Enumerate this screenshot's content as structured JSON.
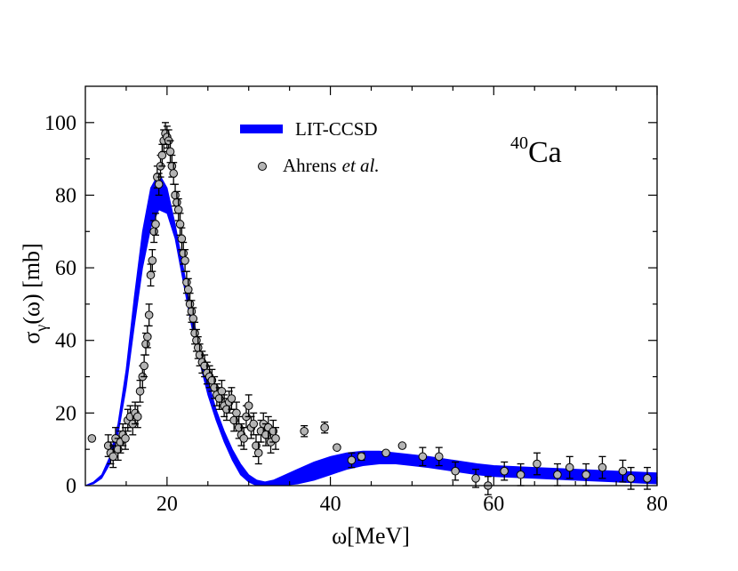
{
  "chart_data": {
    "type": "line",
    "xlabel": "ω[MeV]",
    "ylabel": {
      "main": "σ",
      "sub": "γ",
      "rest": "(ω) [mb]"
    },
    "xlim": [
      10,
      80
    ],
    "ylim": [
      0,
      110
    ],
    "xticks": [
      20,
      40,
      60,
      80
    ],
    "yticks": [
      0,
      20,
      40,
      60,
      80,
      100
    ],
    "xtick_labels": [
      "20",
      "40",
      "60",
      "80"
    ],
    "ytick_labels": [
      "0",
      "20",
      "40",
      "60",
      "80",
      "100"
    ],
    "annotation": {
      "sup": "40",
      "base": "Ca"
    },
    "colors": {
      "band": "#0000ff",
      "points": "#b4b4b4"
    },
    "series": [
      {
        "name": "LIT-CCSD",
        "kind": "band",
        "x": [
          10,
          11,
          12,
          13,
          14,
          15,
          16,
          17,
          18,
          19,
          20,
          21,
          22,
          23,
          24,
          25,
          26,
          27,
          28,
          29,
          30,
          31,
          32,
          33,
          34,
          36,
          38,
          40,
          42,
          44,
          46,
          48,
          50,
          52,
          55,
          58,
          60,
          65,
          70,
          75,
          80
        ],
        "lower": [
          0,
          0.5,
          2,
          6,
          14,
          27,
          44,
          60,
          71,
          76,
          75,
          68,
          56,
          44,
          34,
          25,
          18,
          12,
          7,
          3,
          1,
          0,
          0,
          0,
          0,
          0.5,
          1.5,
          3,
          4.5,
          5.5,
          6,
          6,
          5.5,
          5,
          4,
          3,
          2.5,
          2,
          1.5,
          1,
          0.5
        ],
        "upper": [
          0,
          1,
          3,
          8,
          17,
          32,
          52,
          70,
          82,
          86,
          82,
          72,
          60,
          48,
          38,
          29,
          21,
          15,
          10,
          6,
          3,
          1.5,
          1,
          1.5,
          2.5,
          4.5,
          6.5,
          8,
          9,
          9.5,
          9.5,
          9,
          8.5,
          8,
          7,
          6,
          5.5,
          5,
          4.5,
          4,
          3.5
        ]
      },
      {
        "name": "Ahrens et al.",
        "name_main": "Ahrens",
        "name_italic": "et al.",
        "kind": "scatter",
        "points": [
          [
            10.8,
            13,
            0
          ],
          [
            12.8,
            11,
            3
          ],
          [
            13.1,
            9,
            3
          ],
          [
            13.4,
            8,
            3
          ],
          [
            13.7,
            13,
            3
          ],
          [
            14.0,
            10,
            3
          ],
          [
            14.3,
            12,
            3
          ],
          [
            14.6,
            14,
            3
          ],
          [
            14.9,
            13,
            3
          ],
          [
            15.2,
            18,
            3
          ],
          [
            15.5,
            19,
            3
          ],
          [
            15.8,
            17,
            3
          ],
          [
            16.1,
            20,
            3
          ],
          [
            16.4,
            19,
            3
          ],
          [
            16.7,
            26,
            3
          ],
          [
            17.0,
            30,
            3
          ],
          [
            17.2,
            33,
            3
          ],
          [
            17.4,
            39,
            3
          ],
          [
            17.6,
            41,
            3
          ],
          [
            17.8,
            47,
            3
          ],
          [
            18.0,
            58,
            3
          ],
          [
            18.2,
            62,
            3
          ],
          [
            18.4,
            70,
            3
          ],
          [
            18.6,
            72,
            3
          ],
          [
            18.8,
            85,
            3
          ],
          [
            19.0,
            83,
            3
          ],
          [
            19.2,
            88,
            3
          ],
          [
            19.4,
            91,
            3
          ],
          [
            19.6,
            95,
            3
          ],
          [
            19.8,
            97,
            3
          ],
          [
            20.0,
            96,
            3
          ],
          [
            20.2,
            95,
            3
          ],
          [
            20.4,
            92,
            3
          ],
          [
            20.6,
            88,
            3
          ],
          [
            20.8,
            86,
            3
          ],
          [
            21.0,
            80,
            3
          ],
          [
            21.2,
            78,
            3
          ],
          [
            21.4,
            76,
            3
          ],
          [
            21.6,
            72,
            3
          ],
          [
            21.8,
            68,
            3
          ],
          [
            22.0,
            64,
            3
          ],
          [
            22.2,
            62,
            3
          ],
          [
            22.4,
            56,
            3
          ],
          [
            22.6,
            54,
            3
          ],
          [
            22.8,
            50,
            3
          ],
          [
            23.0,
            48,
            3
          ],
          [
            23.2,
            46,
            3
          ],
          [
            23.4,
            42,
            3
          ],
          [
            23.6,
            40,
            3
          ],
          [
            23.8,
            38,
            3
          ],
          [
            24.0,
            36,
            3
          ],
          [
            24.3,
            34,
            3
          ],
          [
            24.6,
            33,
            3
          ],
          [
            24.9,
            31,
            3
          ],
          [
            25.2,
            30,
            3
          ],
          [
            25.5,
            29,
            3
          ],
          [
            25.8,
            27,
            3
          ],
          [
            26.1,
            25,
            3
          ],
          [
            26.4,
            24,
            3
          ],
          [
            26.7,
            26,
            3
          ],
          [
            27.0,
            22,
            3
          ],
          [
            27.3,
            21,
            3
          ],
          [
            27.6,
            23,
            3
          ],
          [
            27.9,
            24,
            3
          ],
          [
            28.2,
            18,
            3
          ],
          [
            28.5,
            20,
            3
          ],
          [
            28.8,
            16,
            3
          ],
          [
            29.1,
            14,
            3
          ],
          [
            29.4,
            13,
            3
          ],
          [
            29.7,
            19,
            3
          ],
          [
            30.0,
            22,
            3
          ],
          [
            30.3,
            16,
            3
          ],
          [
            30.6,
            17,
            3
          ],
          [
            30.9,
            11,
            3
          ],
          [
            31.2,
            9,
            3
          ],
          [
            31.5,
            15,
            3
          ],
          [
            31.8,
            17,
            3
          ],
          [
            32.1,
            14,
            3
          ],
          [
            32.4,
            16,
            3
          ],
          [
            32.7,
            12,
            3
          ],
          [
            33.0,
            15,
            3
          ],
          [
            33.3,
            13,
            3
          ],
          [
            36.8,
            15,
            1.5
          ],
          [
            39.3,
            16,
            1.5
          ],
          [
            40.8,
            10.5,
            0
          ],
          [
            42.6,
            7,
            2
          ],
          [
            43.8,
            8,
            1
          ],
          [
            46.8,
            9,
            0
          ],
          [
            48.8,
            11,
            0
          ],
          [
            51.3,
            8,
            2.5
          ],
          [
            53.3,
            8,
            2.5
          ],
          [
            55.3,
            4,
            2.5
          ],
          [
            57.8,
            2,
            2.5
          ],
          [
            59.3,
            0,
            2.5
          ],
          [
            61.3,
            4,
            2.5
          ],
          [
            63.3,
            3,
            3
          ],
          [
            65.3,
            6,
            3
          ],
          [
            67.8,
            3,
            3
          ],
          [
            69.3,
            5,
            3
          ],
          [
            71.3,
            3,
            3
          ],
          [
            73.3,
            5,
            3
          ],
          [
            75.8,
            4,
            3
          ],
          [
            76.8,
            2,
            3
          ],
          [
            78.8,
            2,
            3
          ]
        ]
      }
    ]
  }
}
